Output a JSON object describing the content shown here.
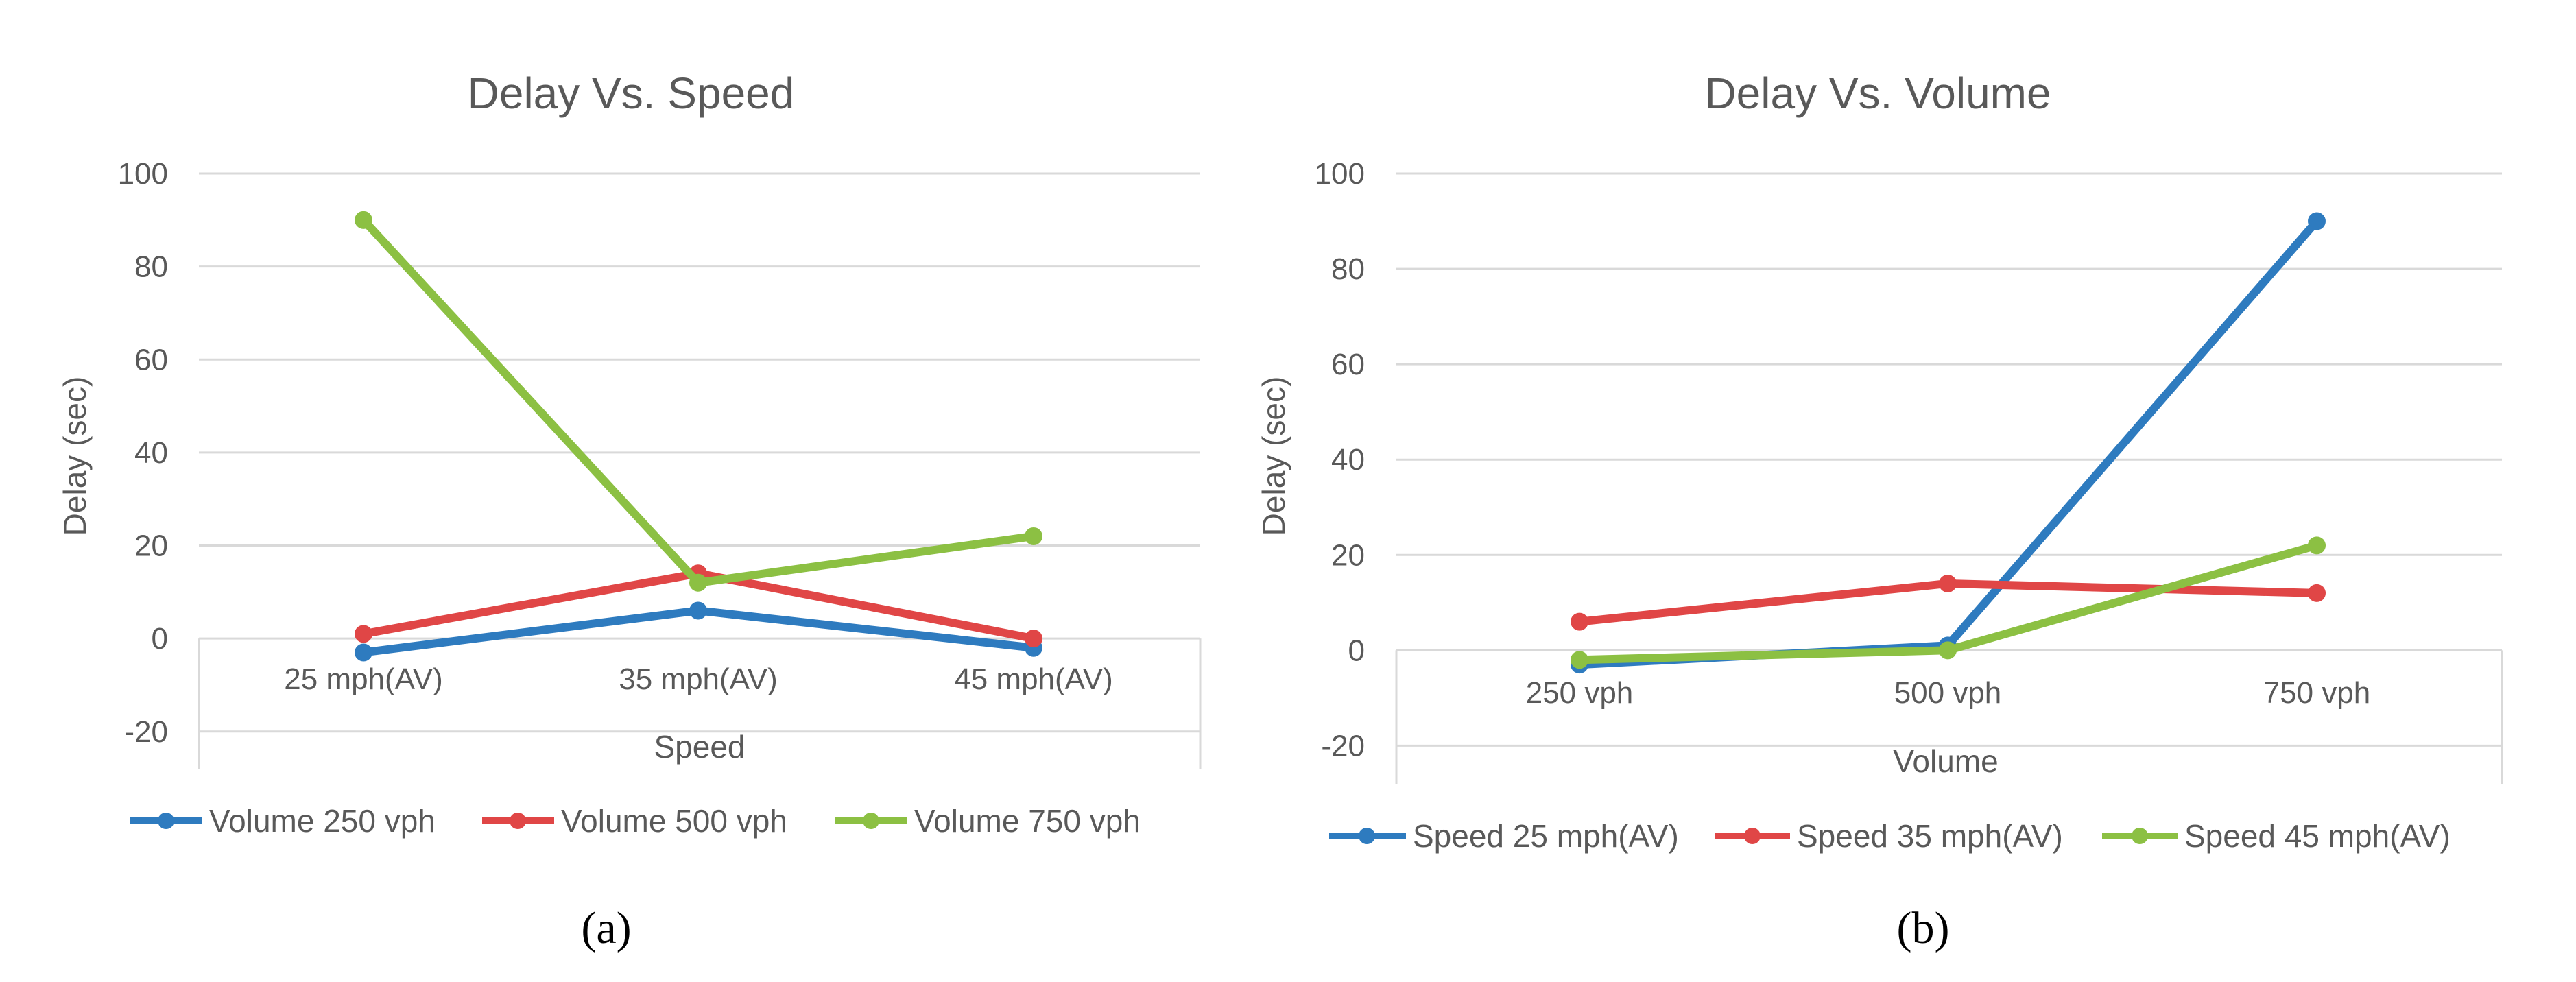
{
  "chart_data": [
    {
      "type": "line",
      "title": "Delay Vs. Speed",
      "xlabel": "Speed",
      "ylabel": "Delay (sec)",
      "panel_label": "(a)",
      "categories": [
        "25 mph(AV)",
        "35 mph(AV)",
        "45 mph(AV)"
      ],
      "ylim": [
        -20,
        100
      ],
      "yticks": [
        -20,
        0,
        20,
        40,
        60,
        80,
        100
      ],
      "grid": true,
      "legend_position": "bottom",
      "series": [
        {
          "name": "Volume 250 vph",
          "color": "#2e7bbf",
          "values": [
            -3,
            6,
            -2
          ]
        },
        {
          "name": "Volume 500 vph",
          "color": "#e04646",
          "values": [
            1,
            14,
            0
          ]
        },
        {
          "name": "Volume 750 vph",
          "color": "#8cc043",
          "values": [
            90,
            12,
            22
          ]
        }
      ]
    },
    {
      "type": "line",
      "title": "Delay Vs. Volume",
      "xlabel": "Volume",
      "ylabel": "Delay (sec)",
      "panel_label": "(b)",
      "categories": [
        "250 vph",
        "500 vph",
        "750 vph"
      ],
      "ylim": [
        -20,
        100
      ],
      "yticks": [
        -20,
        0,
        20,
        40,
        60,
        80,
        100
      ],
      "grid": true,
      "legend_position": "bottom",
      "series": [
        {
          "name": "Speed 25 mph(AV)",
          "color": "#2e7bbf",
          "values": [
            -3,
            1,
            90
          ]
        },
        {
          "name": "Speed 35 mph(AV)",
          "color": "#e04646",
          "values": [
            6,
            14,
            12
          ]
        },
        {
          "name": "Speed 45 mph(AV)",
          "color": "#8cc043",
          "values": [
            -2,
            0,
            22
          ]
        }
      ]
    }
  ]
}
